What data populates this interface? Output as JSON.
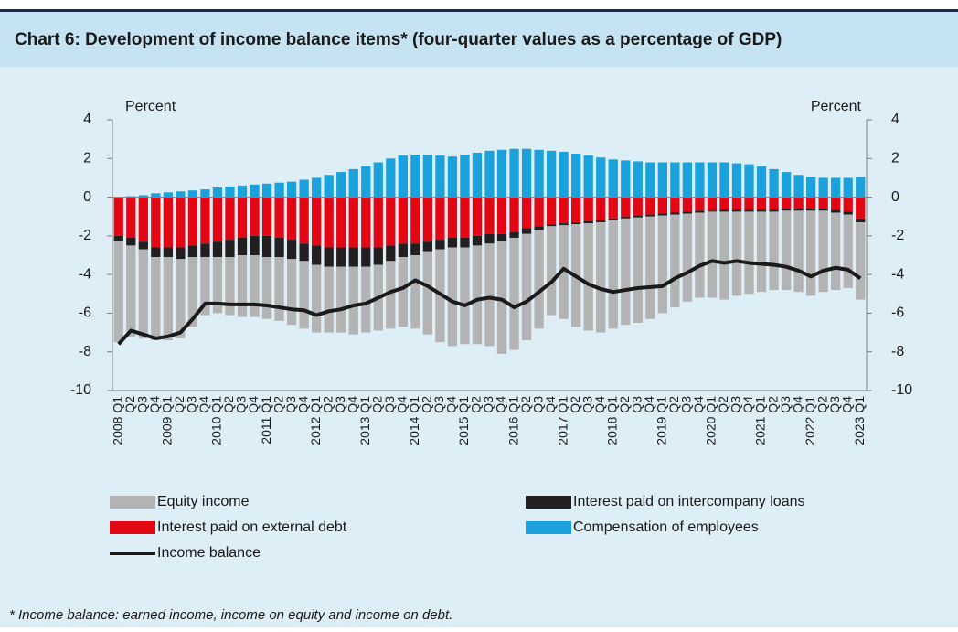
{
  "chart_data": {
    "type": "bar",
    "title": "Chart 6: Development of income balance items* (four-quarter values as a percentage of GDP)",
    "y_label": "Percent",
    "y2_label": "Percent",
    "footnote": "* Income balance: earned income, income on equity and income on debt.",
    "categories": [
      "2008 Q1",
      "Q2",
      "Q3",
      "Q4",
      "2009 Q1",
      "Q2",
      "Q3",
      "Q4",
      "2010 Q1",
      "Q2",
      "Q3",
      "Q4",
      "2011 Q1",
      "Q2",
      "Q3",
      "Q4",
      "2012 Q1",
      "Q2",
      "Q3",
      "Q4",
      "2013 Q1",
      "Q2",
      "Q3",
      "Q4",
      "2014 Q1",
      "Q2",
      "Q3",
      "Q4",
      "2015 Q1",
      "Q2",
      "Q3",
      "Q4",
      "2016 Q1",
      "Q2",
      "Q3",
      "Q4",
      "2017 Q1",
      "Q2",
      "Q3",
      "Q4",
      "2018 Q1",
      "Q2",
      "Q3",
      "Q4",
      "2019 Q1",
      "Q2",
      "Q3",
      "Q4",
      "2020 Q1",
      "Q2",
      "Q3",
      "Q4",
      "2021 Q1",
      "Q2",
      "Q3",
      "Q4",
      "2022 Q1",
      "Q2",
      "Q3",
      "Q4",
      "2023 Q1"
    ],
    "series": [
      {
        "name": "Equity income",
        "color": "#b3b3b3",
        "values": [
          -5.2,
          -4.7,
          -4.6,
          -4.3,
          -4.3,
          -4.1,
          -3.6,
          -3.0,
          -2.9,
          -3.0,
          -3.2,
          -3.2,
          -3.2,
          -3.3,
          -3.4,
          -3.5,
          -3.5,
          -3.4,
          -3.4,
          -3.5,
          -3.4,
          -3.4,
          -3.5,
          -3.6,
          -3.8,
          -4.3,
          -4.8,
          -5.1,
          -5.0,
          -5.1,
          -5.3,
          -5.8,
          -5.8,
          -5.5,
          -5.1,
          -4.6,
          -4.85,
          -5.3,
          -5.55,
          -5.7,
          -5.6,
          -5.5,
          -5.45,
          -5.3,
          -5.05,
          -4.8,
          -4.55,
          -4.4,
          -4.45,
          -4.55,
          -4.35,
          -4.25,
          -4.15,
          -4.05,
          -4.1,
          -4.2,
          -4.4,
          -4.2,
          -4.0,
          -3.8,
          -4.0
        ]
      },
      {
        "name": "Interest paid on intercompany loans",
        "color": "#231f20",
        "values": [
          -0.3,
          -0.4,
          -0.4,
          -0.5,
          -0.5,
          -0.6,
          -0.6,
          -0.7,
          -0.8,
          -0.9,
          -0.9,
          -1.0,
          -1.1,
          -1.0,
          -1.0,
          -0.9,
          -1.0,
          -1.0,
          -1.0,
          -1.0,
          -1.0,
          -0.9,
          -0.8,
          -0.7,
          -0.6,
          -0.5,
          -0.5,
          -0.5,
          -0.5,
          -0.5,
          -0.5,
          -0.4,
          -0.3,
          -0.3,
          -0.2,
          -0.1,
          -0.1,
          -0.1,
          -0.1,
          -0.1,
          -0.1,
          -0.1,
          -0.1,
          -0.1,
          -0.1,
          -0.1,
          -0.1,
          -0.1,
          -0.05,
          -0.1,
          -0.1,
          -0.1,
          -0.1,
          -0.1,
          -0.1,
          -0.1,
          -0.1,
          -0.1,
          -0.15,
          -0.15,
          -0.2
        ]
      },
      {
        "name": "Interest paid on external debt",
        "color": "#e30613",
        "values": [
          -2.0,
          -2.1,
          -2.3,
          -2.6,
          -2.6,
          -2.6,
          -2.5,
          -2.4,
          -2.3,
          -2.2,
          -2.1,
          -2.0,
          -2.0,
          -2.1,
          -2.2,
          -2.4,
          -2.5,
          -2.6,
          -2.6,
          -2.6,
          -2.6,
          -2.6,
          -2.5,
          -2.4,
          -2.4,
          -2.3,
          -2.2,
          -2.1,
          -2.1,
          -2.0,
          -1.9,
          -1.9,
          -1.8,
          -1.6,
          -1.5,
          -1.4,
          -1.35,
          -1.3,
          -1.25,
          -1.2,
          -1.1,
          -1.0,
          -0.95,
          -0.9,
          -0.85,
          -0.8,
          -0.75,
          -0.7,
          -0.7,
          -0.65,
          -0.65,
          -0.65,
          -0.65,
          -0.65,
          -0.6,
          -0.6,
          -0.6,
          -0.6,
          -0.65,
          -0.75,
          -1.1
        ]
      },
      {
        "name": "Compensation of employees",
        "color": "#1ba1dc",
        "values": [
          0,
          0.05,
          0.1,
          0.2,
          0.25,
          0.3,
          0.35,
          0.4,
          0.5,
          0.55,
          0.6,
          0.65,
          0.7,
          0.75,
          0.8,
          0.9,
          1.0,
          1.15,
          1.3,
          1.45,
          1.6,
          1.8,
          2.0,
          2.15,
          2.2,
          2.2,
          2.15,
          2.1,
          2.2,
          2.3,
          2.4,
          2.45,
          2.5,
          2.5,
          2.45,
          2.4,
          2.35,
          2.25,
          2.15,
          2.05,
          1.95,
          1.9,
          1.85,
          1.8,
          1.8,
          1.8,
          1.8,
          1.8,
          1.8,
          1.8,
          1.75,
          1.7,
          1.6,
          1.45,
          1.3,
          1.15,
          1.05,
          1.0,
          1.0,
          1.0,
          1.05
        ]
      },
      {
        "name": "Income balance",
        "type": "line",
        "color": "#1a1a1a",
        "values": [
          -7.6,
          -6.9,
          -7.1,
          -7.3,
          -7.2,
          -7.0,
          -6.3,
          -5.5,
          -5.5,
          -5.55,
          -5.55,
          -5.55,
          -5.6,
          -5.7,
          -5.8,
          -5.85,
          -6.1,
          -5.9,
          -5.8,
          -5.6,
          -5.5,
          -5.2,
          -4.9,
          -4.7,
          -4.3,
          -4.6,
          -5.0,
          -5.4,
          -5.6,
          -5.3,
          -5.2,
          -5.3,
          -5.7,
          -5.4,
          -4.9,
          -4.4,
          -3.7,
          -4.1,
          -4.5,
          -4.75,
          -4.9,
          -4.8,
          -4.7,
          -4.65,
          -4.6,
          -4.2,
          -3.9,
          -3.55,
          -3.3,
          -3.4,
          -3.3,
          -3.4,
          -3.45,
          -3.5,
          -3.6,
          -3.8,
          -4.1,
          -3.8,
          -3.65,
          -3.75,
          -4.2
        ]
      }
    ],
    "ylim": [
      -10,
      4
    ],
    "yticks": [
      -10,
      -8,
      -6,
      -4,
      -2,
      0,
      2,
      4
    ],
    "y2lim": [
      -10,
      4
    ],
    "y2ticks": [
      -10,
      -8,
      -6,
      -4,
      -2,
      0,
      2,
      4
    ]
  }
}
